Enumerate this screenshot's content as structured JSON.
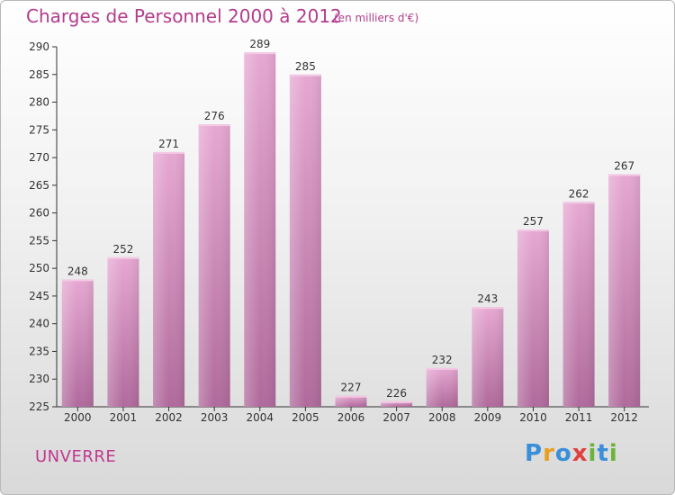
{
  "title": "Charges de Personnel 2000 à 2012",
  "subtitle": "(en milliers d'€)",
  "place": "UNVERRE",
  "logo": {
    "letters": [
      "P",
      "r",
      "o",
      "x",
      "i",
      "t",
      "i"
    ],
    "colors": [
      "#3a8fd9",
      "#e8a020",
      "#3a8fd9",
      "#e04040",
      "#6cb33a",
      "#3a8fd9",
      "#6cb33a"
    ]
  },
  "colors": {
    "bar": "#d98fbf",
    "bar_dark": "#b8679f",
    "accent": "#b33c8c"
  },
  "chart_data": {
    "type": "bar",
    "title": "Charges de Personnel 2000 à 2012",
    "ylabel": "",
    "xlabel": "",
    "categories": [
      "2000",
      "2001",
      "2002",
      "2003",
      "2004",
      "2005",
      "2006",
      "2007",
      "2008",
      "2009",
      "2010",
      "2011",
      "2012"
    ],
    "values": [
      248,
      252,
      271,
      276,
      289,
      285,
      227,
      226,
      232,
      243,
      257,
      262,
      267
    ],
    "ylim": [
      225,
      290
    ],
    "yticks": [
      225,
      230,
      235,
      240,
      245,
      250,
      255,
      260,
      265,
      270,
      275,
      280,
      285,
      290
    ],
    "grid": false,
    "legend": "none"
  }
}
